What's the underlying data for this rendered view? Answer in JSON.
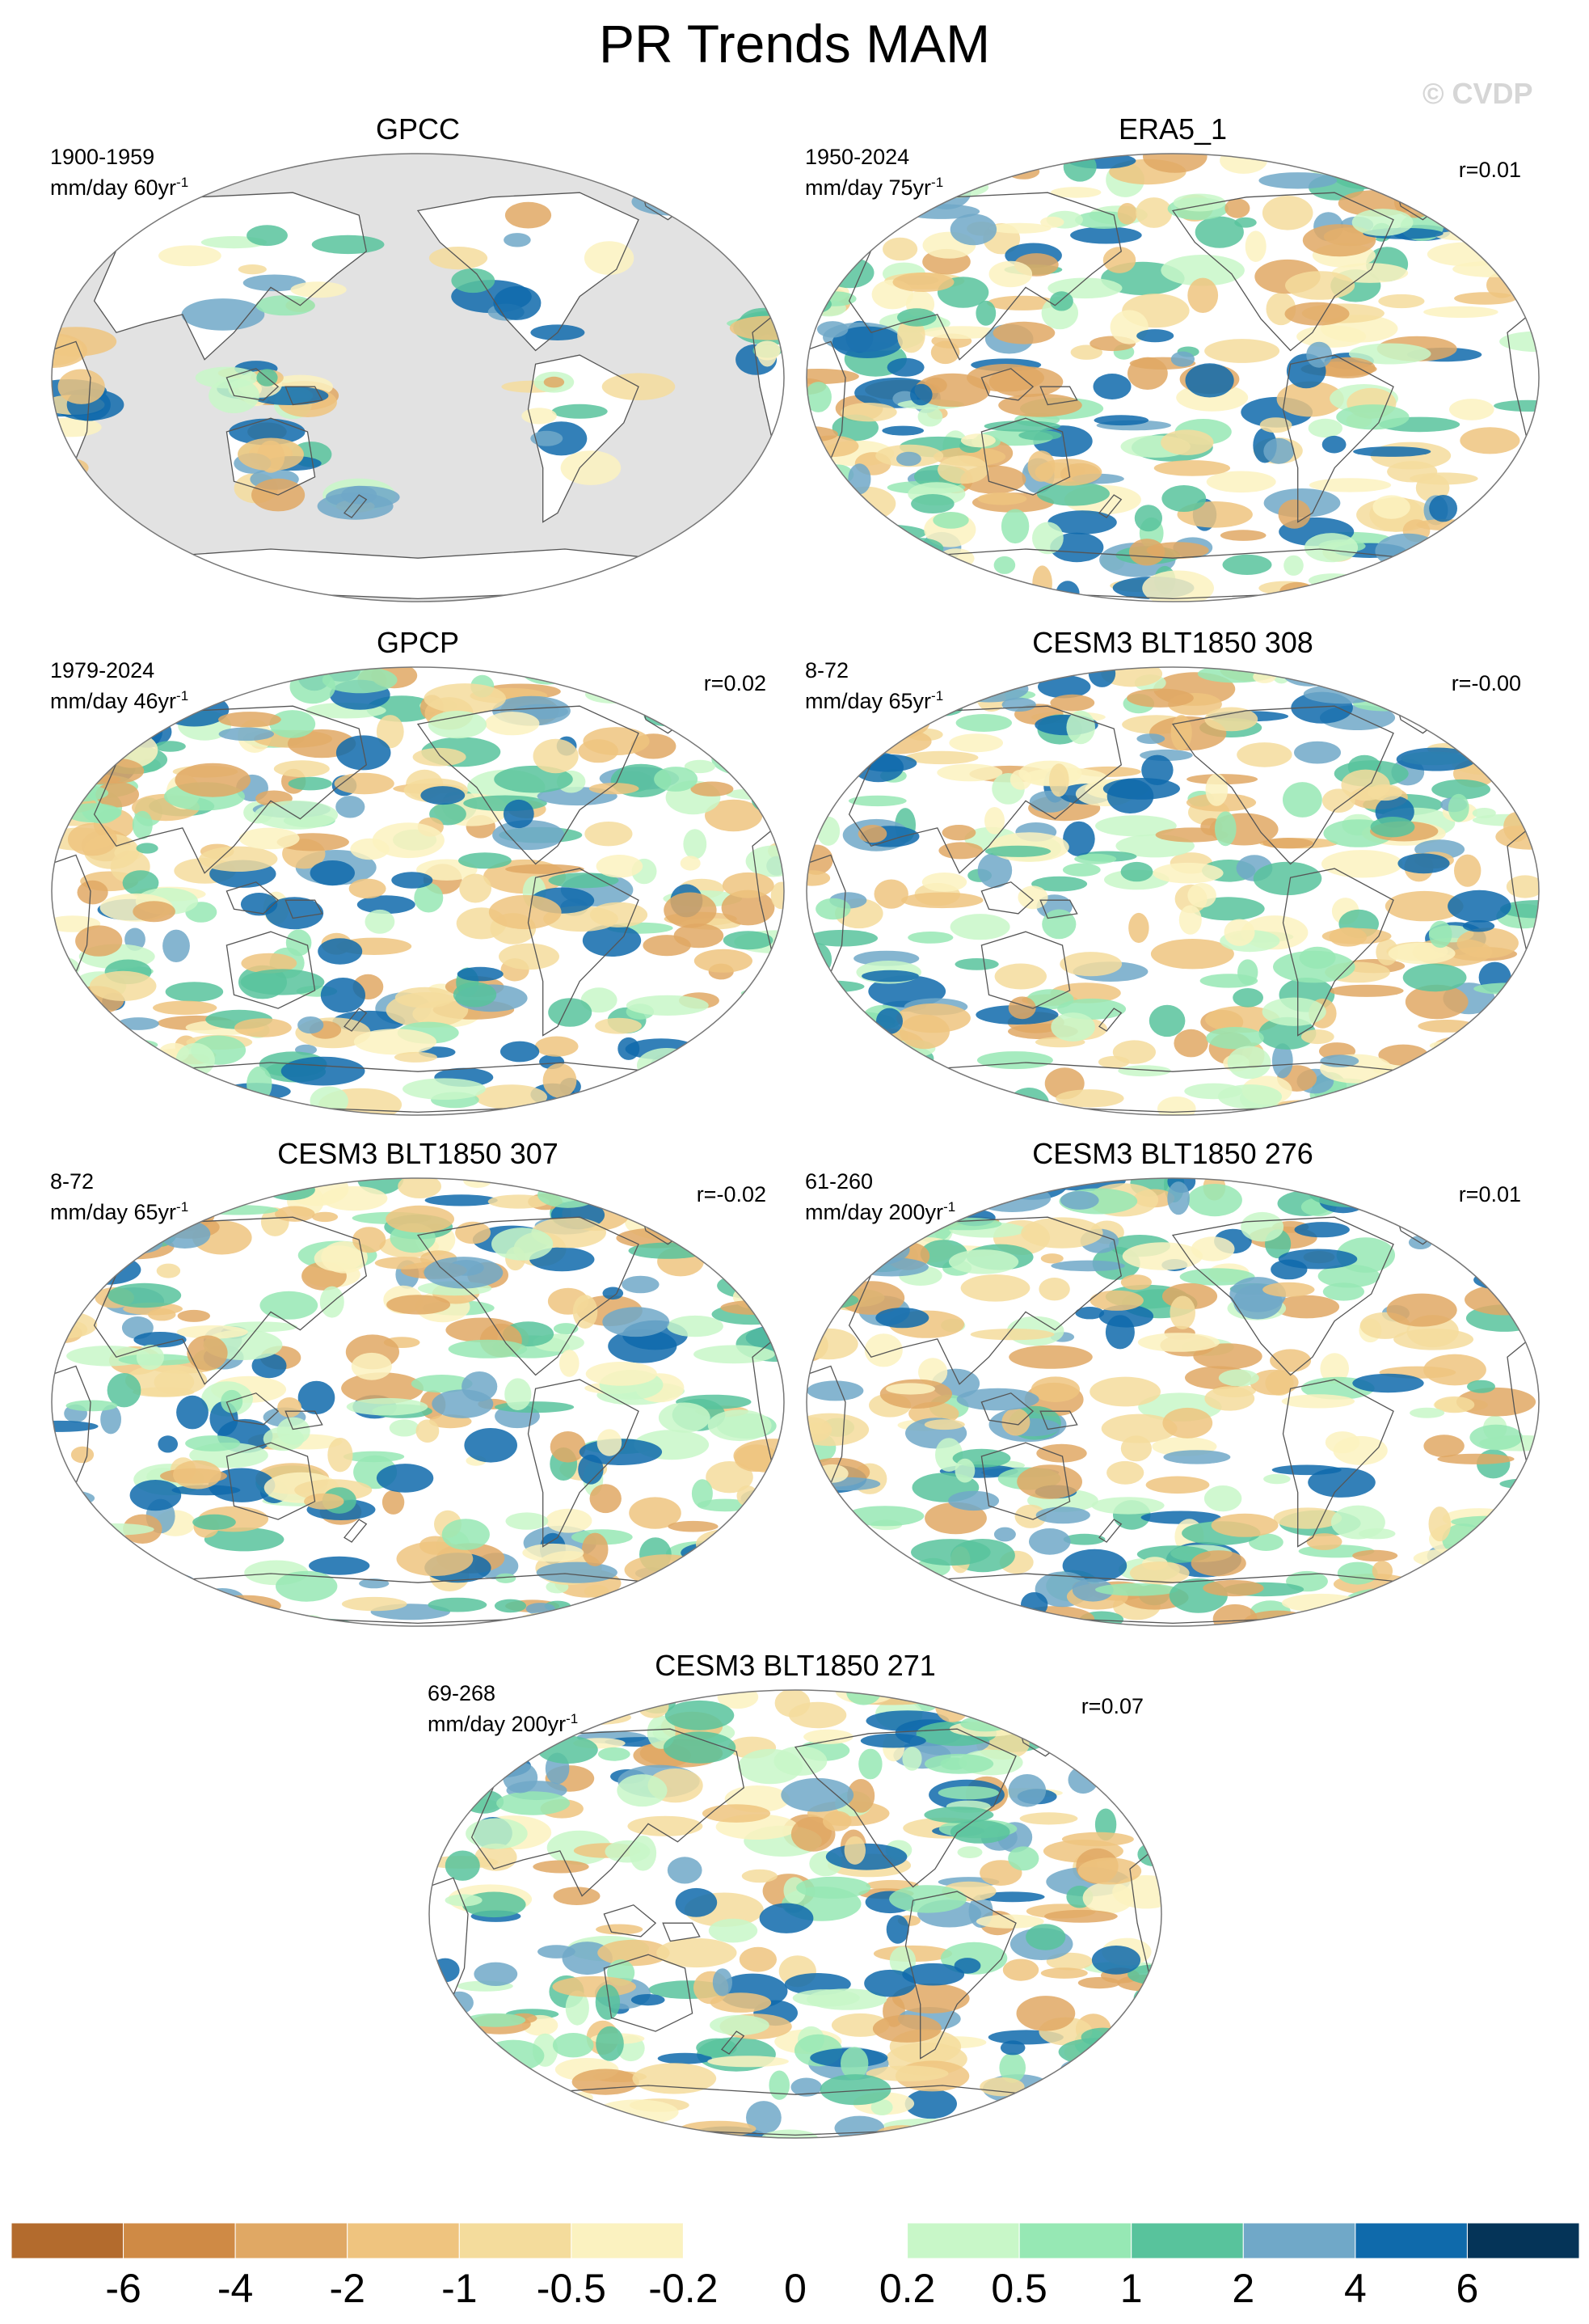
{
  "title": "PR Trends MAM",
  "watermark": "© CVDP",
  "colors": {
    "land_missing": "#e2e2e2",
    "coast": "#555555",
    "levels": [
      "#b36b2d",
      "#cf8a45",
      "#e0a864",
      "#efc47f",
      "#f4dc9c",
      "#fbf2c0",
      "#ffffff",
      "#ffffff",
      "#c8f7c8",
      "#96e8b4",
      "#58c39c",
      "#70a8c8",
      "#0f6aab",
      "#053458"
    ]
  },
  "panels": [
    {
      "title": "GPCC",
      "period": "1900-1959",
      "units": "mm/day 60yr",
      "units_exp": "-1",
      "corr": "",
      "land_only": true
    },
    {
      "title": "ERA5_1",
      "period": "1950-2024",
      "units": "mm/day 75yr",
      "units_exp": "-1",
      "corr": "r=0.01",
      "land_only": false
    },
    {
      "title": "GPCP",
      "period": "1979-2024",
      "units": "mm/day 46yr",
      "units_exp": "-1",
      "corr": "r=0.02",
      "land_only": false
    },
    {
      "title": "CESM3 BLT1850 308",
      "period": "8-72",
      "units": "mm/day 65yr",
      "units_exp": "-1",
      "corr": "r=-0.00",
      "land_only": false
    },
    {
      "title": "CESM3 BLT1850 307",
      "period": "8-72",
      "units": "mm/day 65yr",
      "units_exp": "-1",
      "corr": "r=-0.02",
      "land_only": false
    },
    {
      "title": "CESM3 BLT1850 276",
      "period": "61-260",
      "units": "mm/day 200yr",
      "units_exp": "-1",
      "corr": "r=0.01",
      "land_only": false
    },
    {
      "title": "CESM3 BLT1850 271",
      "period": "69-268",
      "units": "mm/day 200yr",
      "units_exp": "-1",
      "corr": "r=0.07",
      "land_only": false
    }
  ],
  "chart_data": {
    "type": "heatmap",
    "projection": "Robinson (Pacific-centered)",
    "colorbar": {
      "levels": [
        -6,
        -4,
        -2,
        -1,
        -0.5,
        -0.2,
        0,
        0.2,
        0.5,
        1,
        2,
        4,
        6
      ],
      "labels": [
        "-6",
        "-4",
        "-2",
        "-1",
        "-0.5",
        "-0.2",
        "0",
        "0.2",
        "0.5",
        "1",
        "2",
        "4",
        "6"
      ],
      "position": "bottom"
    }
  }
}
